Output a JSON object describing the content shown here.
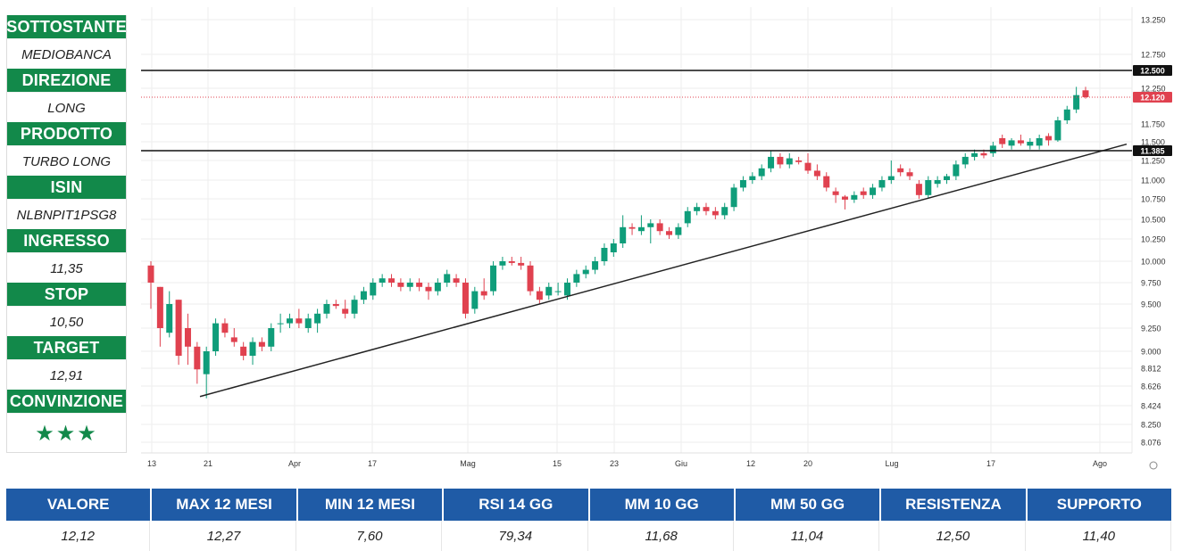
{
  "panel": [
    {
      "label": "SOTTOSTANTE",
      "value": "MEDIOBANCA"
    },
    {
      "label": "DIREZIONE",
      "value": "LONG"
    },
    {
      "label": "PRODOTTO",
      "value": "TURBO LONG"
    },
    {
      "label": "ISIN",
      "value": "NLBNPIT1PSG8"
    },
    {
      "label": "INGRESSO",
      "value": "11,35"
    },
    {
      "label": "STOP",
      "value": "10,50"
    },
    {
      "label": "TARGET",
      "value": "12,91"
    },
    {
      "label": "CONVINZIONE",
      "value": "★★★"
    }
  ],
  "stats": [
    {
      "label": "VALORE",
      "value": "12,12"
    },
    {
      "label": "MAX 12 MESI",
      "value": "12,27"
    },
    {
      "label": "MIN 12 MESI",
      "value": "7,60"
    },
    {
      "label": "RSI 14 GG",
      "value": "79,34"
    },
    {
      "label": "MM 10 GG",
      "value": "11,68"
    },
    {
      "label": "MM 50 GG",
      "value": "11,04"
    },
    {
      "label": "RESISTENZA",
      "value": "12,50"
    },
    {
      "label": "SUPPORTO",
      "value": "11,40"
    }
  ],
  "chart_data": {
    "type": "candlestick",
    "y_ticks": [
      "13.250",
      "12.750",
      "12.250",
      "11.750",
      "11.500",
      "11.250",
      "11.000",
      "10.750",
      "10.500",
      "10.250",
      "10.000",
      "9.750",
      "9.500",
      "9.250",
      "9.000",
      "8.812",
      "8.626",
      "8.424",
      "8.250",
      "8.076"
    ],
    "x_ticks": [
      "13",
      "21",
      "Apr",
      "17",
      "Mag",
      "15",
      "23",
      "Giu",
      "12",
      "20",
      "Lug",
      "17",
      "Ago"
    ],
    "price_labels": [
      {
        "text": "12.500",
        "value": 12.5,
        "type": "level"
      },
      {
        "text": "12.120",
        "value": 12.12,
        "type": "last"
      },
      {
        "text": "11.385",
        "value": 11.385,
        "type": "level"
      }
    ],
    "trendline": {
      "from": {
        "date": "2023-03-20",
        "value": 8.5
      },
      "to": {
        "date": "2023-08-03",
        "value": 11.4
      }
    },
    "colors": {
      "up": "#0f9d7a",
      "down": "#e0414f",
      "level_line": "#111111",
      "last_line": "#e0414f",
      "trendline": "#222222",
      "grid": "#eeeeee"
    },
    "candles": [
      {
        "o": 9.95,
        "h": 10.0,
        "l": 9.45,
        "c": 9.75
      },
      {
        "o": 9.7,
        "h": 9.7,
        "l": 9.05,
        "c": 9.25
      },
      {
        "o": 9.2,
        "h": 9.65,
        "l": 9.15,
        "c": 9.5
      },
      {
        "o": 9.55,
        "h": 9.55,
        "l": 8.85,
        "c": 8.95
      },
      {
        "o": 9.25,
        "h": 9.4,
        "l": 8.85,
        "c": 9.05
      },
      {
        "o": 9.05,
        "h": 9.1,
        "l": 8.65,
        "c": 8.8
      },
      {
        "o": 8.75,
        "h": 9.05,
        "l": 8.5,
        "c": 9.0
      },
      {
        "o": 9.0,
        "h": 9.35,
        "l": 8.95,
        "c": 9.3
      },
      {
        "o": 9.3,
        "h": 9.35,
        "l": 9.15,
        "c": 9.2
      },
      {
        "o": 9.15,
        "h": 9.25,
        "l": 9.05,
        "c": 9.1
      },
      {
        "o": 9.05,
        "h": 9.1,
        "l": 8.9,
        "c": 8.95
      },
      {
        "o": 8.95,
        "h": 9.15,
        "l": 8.85,
        "c": 9.1
      },
      {
        "o": 9.1,
        "h": 9.15,
        "l": 9.0,
        "c": 9.05
      },
      {
        "o": 9.05,
        "h": 9.3,
        "l": 9.0,
        "c": 9.25
      },
      {
        "o": 9.3,
        "h": 9.4,
        "l": 9.2,
        "c": 9.3
      },
      {
        "o": 9.3,
        "h": 9.4,
        "l": 9.25,
        "c": 9.35
      },
      {
        "o": 9.35,
        "h": 9.45,
        "l": 9.25,
        "c": 9.3
      },
      {
        "o": 9.25,
        "h": 9.4,
        "l": 9.2,
        "c": 9.35
      },
      {
        "o": 9.3,
        "h": 9.45,
        "l": 9.2,
        "c": 9.4
      },
      {
        "o": 9.4,
        "h": 9.55,
        "l": 9.35,
        "c": 9.5
      },
      {
        "o": 9.5,
        "h": 9.55,
        "l": 9.45,
        "c": 9.48
      },
      {
        "o": 9.45,
        "h": 9.55,
        "l": 9.35,
        "c": 9.4
      },
      {
        "o": 9.4,
        "h": 9.6,
        "l": 9.35,
        "c": 9.55
      },
      {
        "o": 9.55,
        "h": 9.7,
        "l": 9.5,
        "c": 9.65
      },
      {
        "o": 9.6,
        "h": 9.8,
        "l": 9.55,
        "c": 9.75
      },
      {
        "o": 9.75,
        "h": 9.85,
        "l": 9.7,
        "c": 9.8
      },
      {
        "o": 9.8,
        "h": 9.85,
        "l": 9.7,
        "c": 9.75
      },
      {
        "o": 9.75,
        "h": 9.8,
        "l": 9.65,
        "c": 9.7
      },
      {
        "o": 9.7,
        "h": 9.8,
        "l": 9.65,
        "c": 9.75
      },
      {
        "o": 9.75,
        "h": 9.8,
        "l": 9.65,
        "c": 9.7
      },
      {
        "o": 9.7,
        "h": 9.75,
        "l": 9.55,
        "c": 9.65
      },
      {
        "o": 9.65,
        "h": 9.8,
        "l": 9.6,
        "c": 9.75
      },
      {
        "o": 9.75,
        "h": 9.9,
        "l": 9.7,
        "c": 9.85
      },
      {
        "o": 9.8,
        "h": 9.85,
        "l": 9.7,
        "c": 9.75
      },
      {
        "o": 9.75,
        "h": 9.8,
        "l": 9.35,
        "c": 9.4
      },
      {
        "o": 9.45,
        "h": 9.7,
        "l": 9.4,
        "c": 9.65
      },
      {
        "o": 9.65,
        "h": 9.8,
        "l": 9.55,
        "c": 9.6
      },
      {
        "o": 9.65,
        "h": 10.0,
        "l": 9.6,
        "c": 9.95
      },
      {
        "o": 9.95,
        "h": 10.05,
        "l": 9.9,
        "c": 10.0
      },
      {
        "o": 10.0,
        "h": 10.05,
        "l": 9.95,
        "c": 9.98
      },
      {
        "o": 9.98,
        "h": 10.05,
        "l": 9.9,
        "c": 9.95
      },
      {
        "o": 9.95,
        "h": 10.0,
        "l": 9.6,
        "c": 9.65
      },
      {
        "o": 9.65,
        "h": 9.7,
        "l": 9.5,
        "c": 9.55
      },
      {
        "o": 9.6,
        "h": 9.75,
        "l": 9.55,
        "c": 9.7
      },
      {
        "o": 9.65,
        "h": 9.75,
        "l": 9.6,
        "c": 9.65
      },
      {
        "o": 9.6,
        "h": 9.8,
        "l": 9.55,
        "c": 9.75
      },
      {
        "o": 9.75,
        "h": 9.9,
        "l": 9.7,
        "c": 9.85
      },
      {
        "o": 9.85,
        "h": 9.95,
        "l": 9.8,
        "c": 9.9
      },
      {
        "o": 9.9,
        "h": 10.05,
        "l": 9.85,
        "c": 10.0
      },
      {
        "o": 10.0,
        "h": 10.2,
        "l": 9.95,
        "c": 10.15
      },
      {
        "o": 10.1,
        "h": 10.25,
        "l": 10.05,
        "c": 10.2
      },
      {
        "o": 10.2,
        "h": 10.55,
        "l": 10.15,
        "c": 10.4
      },
      {
        "o": 10.4,
        "h": 10.45,
        "l": 10.3,
        "c": 10.38
      },
      {
        "o": 10.35,
        "h": 10.55,
        "l": 10.3,
        "c": 10.4
      },
      {
        "o": 10.4,
        "h": 10.5,
        "l": 10.2,
        "c": 10.45
      },
      {
        "o": 10.45,
        "h": 10.5,
        "l": 10.3,
        "c": 10.35
      },
      {
        "o": 10.35,
        "h": 10.4,
        "l": 10.25,
        "c": 10.3
      },
      {
        "o": 10.3,
        "h": 10.45,
        "l": 10.25,
        "c": 10.4
      },
      {
        "o": 10.45,
        "h": 10.65,
        "l": 10.4,
        "c": 10.6
      },
      {
        "o": 10.6,
        "h": 10.7,
        "l": 10.55,
        "c": 10.65
      },
      {
        "o": 10.65,
        "h": 10.7,
        "l": 10.55,
        "c": 10.6
      },
      {
        "o": 10.6,
        "h": 10.65,
        "l": 10.5,
        "c": 10.55
      },
      {
        "o": 10.55,
        "h": 10.7,
        "l": 10.5,
        "c": 10.65
      },
      {
        "o": 10.65,
        "h": 10.95,
        "l": 10.6,
        "c": 10.9
      },
      {
        "o": 10.9,
        "h": 11.05,
        "l": 10.85,
        "c": 11.0
      },
      {
        "o": 11.0,
        "h": 11.1,
        "l": 10.95,
        "c": 11.05
      },
      {
        "o": 11.05,
        "h": 11.2,
        "l": 11.0,
        "c": 11.15
      },
      {
        "o": 11.15,
        "h": 11.38,
        "l": 11.1,
        "c": 11.3
      },
      {
        "o": 11.3,
        "h": 11.35,
        "l": 11.15,
        "c": 11.2
      },
      {
        "o": 11.2,
        "h": 11.35,
        "l": 11.15,
        "c": 11.28
      },
      {
        "o": 11.25,
        "h": 11.3,
        "l": 11.2,
        "c": 11.23
      },
      {
        "o": 11.22,
        "h": 11.35,
        "l": 11.08,
        "c": 11.12
      },
      {
        "o": 11.12,
        "h": 11.2,
        "l": 11.0,
        "c": 11.05
      },
      {
        "o": 11.05,
        "h": 11.1,
        "l": 10.85,
        "c": 10.9
      },
      {
        "o": 10.85,
        "h": 10.9,
        "l": 10.7,
        "c": 10.8
      },
      {
        "o": 10.78,
        "h": 10.8,
        "l": 10.62,
        "c": 10.74
      },
      {
        "o": 10.74,
        "h": 10.85,
        "l": 10.7,
        "c": 10.8
      },
      {
        "o": 10.85,
        "h": 10.9,
        "l": 10.75,
        "c": 10.8
      },
      {
        "o": 10.8,
        "h": 10.95,
        "l": 10.75,
        "c": 10.9
      },
      {
        "o": 10.9,
        "h": 11.05,
        "l": 10.85,
        "c": 11.0
      },
      {
        "o": 11.0,
        "h": 11.25,
        "l": 10.95,
        "c": 11.05
      },
      {
        "o": 11.15,
        "h": 11.2,
        "l": 11.05,
        "c": 11.1
      },
      {
        "o": 11.1,
        "h": 11.15,
        "l": 11.0,
        "c": 11.05
      },
      {
        "o": 10.95,
        "h": 11.0,
        "l": 10.75,
        "c": 10.8
      },
      {
        "o": 10.8,
        "h": 11.05,
        "l": 10.75,
        "c": 11.0
      },
      {
        "o": 10.95,
        "h": 11.05,
        "l": 10.9,
        "c": 11.0
      },
      {
        "o": 11.0,
        "h": 11.08,
        "l": 10.95,
        "c": 11.05
      },
      {
        "o": 11.05,
        "h": 11.25,
        "l": 11.0,
        "c": 11.2
      },
      {
        "o": 11.2,
        "h": 11.35,
        "l": 11.15,
        "c": 11.3
      },
      {
        "o": 11.3,
        "h": 11.4,
        "l": 11.25,
        "c": 11.35
      },
      {
        "o": 11.35,
        "h": 11.4,
        "l": 11.28,
        "c": 11.32
      },
      {
        "o": 11.35,
        "h": 11.5,
        "l": 11.3,
        "c": 11.45
      },
      {
        "o": 11.55,
        "h": 11.6,
        "l": 11.42,
        "c": 11.47
      },
      {
        "o": 11.45,
        "h": 11.55,
        "l": 11.4,
        "c": 11.52
      },
      {
        "o": 11.52,
        "h": 11.6,
        "l": 11.45,
        "c": 11.48
      },
      {
        "o": 11.45,
        "h": 11.55,
        "l": 11.4,
        "c": 11.5
      },
      {
        "o": 11.45,
        "h": 11.6,
        "l": 11.4,
        "c": 11.55
      },
      {
        "o": 11.58,
        "h": 11.62,
        "l": 11.45,
        "c": 11.52
      },
      {
        "o": 11.52,
        "h": 11.85,
        "l": 11.5,
        "c": 11.8
      },
      {
        "o": 11.8,
        "h": 12.0,
        "l": 11.75,
        "c": 11.95
      },
      {
        "o": 11.95,
        "h": 12.27,
        "l": 11.9,
        "c": 12.15
      },
      {
        "o": 12.22,
        "h": 12.27,
        "l": 12.1,
        "c": 12.12
      }
    ]
  }
}
